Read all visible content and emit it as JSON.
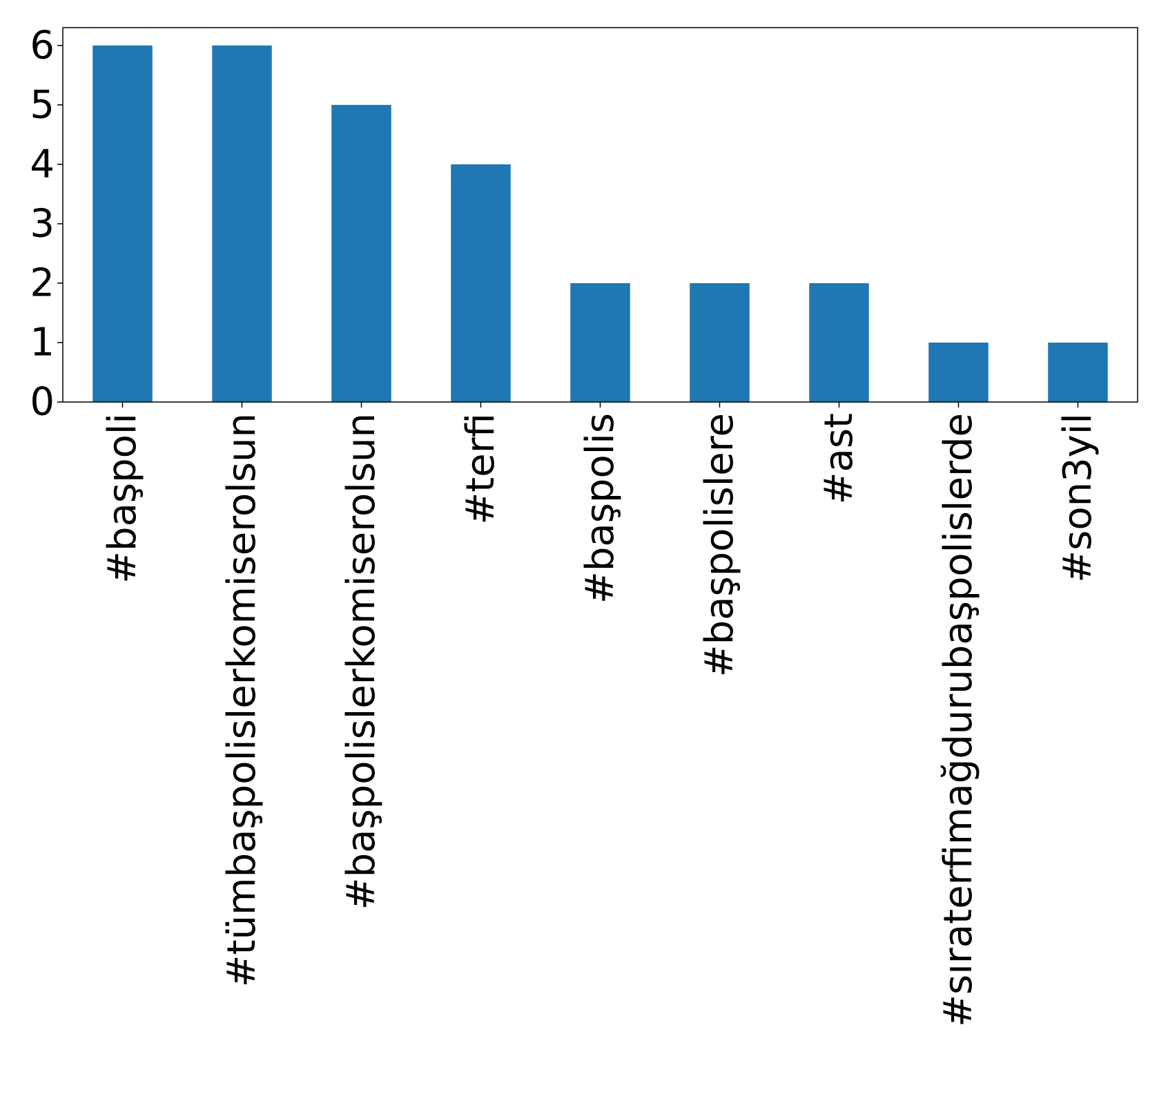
{
  "chart_data": {
    "type": "bar",
    "categories": [
      "#başpoli",
      "#tümbaşpolislerkomiserolsun",
      "#başpolislerkomiserolsun",
      "#terfi",
      "#başpolis",
      "#başpolislere",
      "#ast",
      "#sıraterfimağdurubaşpolislerde",
      "#son3yil"
    ],
    "values": [
      6,
      6,
      5,
      4,
      2,
      2,
      2,
      1,
      1
    ],
    "yticks": [
      0,
      1,
      2,
      3,
      4,
      5,
      6
    ],
    "ylim": [
      0,
      6.3
    ],
    "bar_color": "#1f77b4",
    "grid": false,
    "legend": "none"
  }
}
